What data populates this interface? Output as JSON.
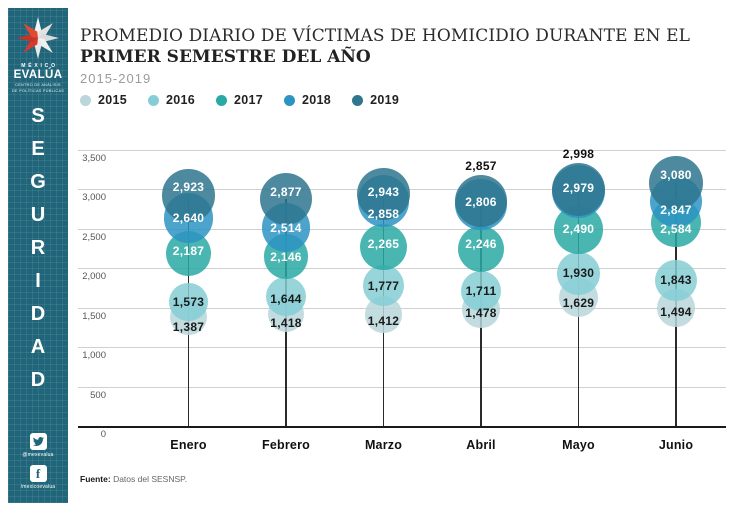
{
  "sidebar": {
    "bg_color": "#206579",
    "logo": {
      "brand_top": "MÉXICO",
      "brand_bottom": "EVALÚA",
      "tagline_line1": "CENTRO DE ANÁLISIS",
      "tagline_line2": "DE POLÍTICAS PÚBLICAS"
    },
    "vertical_label": "SEGURIDAD",
    "social": [
      {
        "icon": "twitter-icon",
        "handle": "@mexevalua"
      },
      {
        "icon": "facebook-icon",
        "handle": "/mexicoevalua"
      }
    ]
  },
  "header": {
    "title_line1": "PROMEDIO DIARIO DE VÍCTIMAS DE HOMICIDIO DURANTE EN EL",
    "title_line2": "PRIMER SEMESTRE DEL AÑO",
    "subtitle": "2015-2019"
  },
  "chart_data": {
    "type": "bubble",
    "title": "PROMEDIO DIARIO DE VÍCTIMAS DE HOMICIDIO DURANTE EN EL PRIMER SEMESTRE DEL AÑO",
    "subtitle": "2015-2019",
    "categories": [
      "Enero",
      "Febrero",
      "Marzo",
      "Abril",
      "Mayo",
      "Junio"
    ],
    "ylim": [
      0,
      3500
    ],
    "grid": true,
    "legend_position": "top-left",
    "y_ticks": [
      {
        "v": 3500,
        "label": "3,500"
      },
      {
        "v": 3000,
        "label": "3,000"
      },
      {
        "v": 2500,
        "label": "2,500"
      },
      {
        "v": 2000,
        "label": "2,000"
      },
      {
        "v": 1500,
        "label": "1,500"
      },
      {
        "v": 1000,
        "label": "1,000"
      },
      {
        "v": 500,
        "label": "500"
      },
      {
        "v": 0,
        "label": "0"
      }
    ],
    "series": [
      {
        "name": "2015",
        "color": "#b9d6da",
        "label_color": "#1a1a1a",
        "values": [
          1387,
          1418,
          1412,
          1478,
          1629,
          1494
        ],
        "label_dy": [
          10,
          9,
          6,
          4,
          5,
          4
        ],
        "label_outside": [
          false,
          false,
          false,
          false,
          false,
          false
        ]
      },
      {
        "name": "2016",
        "color": "#85ced5",
        "label_color": "#1a1a1a",
        "values": [
          1573,
          1644,
          1777,
          1711,
          1930,
          1843
        ],
        "label_dy": [
          0,
          3,
          0,
          0,
          -1,
          -1
        ],
        "label_outside": [
          false,
          false,
          false,
          false,
          false,
          false
        ]
      },
      {
        "name": "2017",
        "color": "#29a9a4",
        "label_color": "#ffffff",
        "values": [
          2187,
          2146,
          2265,
          2246,
          2490,
          2584
        ],
        "label_dy": [
          -3,
          0,
          -3,
          -5,
          -1,
          7
        ],
        "label_outside": [
          false,
          false,
          false,
          false,
          false,
          false
        ]
      },
      {
        "name": "2018",
        "color": "#2d93c2",
        "label_color": "#ffffff",
        "values": [
          2640,
          2514,
          2858,
          2806,
          2979,
          2847
        ],
        "label_dy": [
          0,
          0,
          13,
          -3,
          -3,
          9
        ],
        "label_outside": [
          false,
          false,
          false,
          false,
          false,
          false
        ]
      },
      {
        "name": "2019",
        "color": "#2f768e",
        "label_color": "#ffffff",
        "values": [
          2923,
          2877,
          2943,
          2857,
          2998,
          3080
        ],
        "label_dy": [
          -9,
          -7,
          -2,
          0,
          0,
          -8
        ],
        "label_outside": [
          false,
          false,
          false,
          true,
          true,
          false
        ]
      }
    ]
  },
  "footer": {
    "source_label": "Fuente:",
    "source_text": " Datos del SESNSP."
  }
}
